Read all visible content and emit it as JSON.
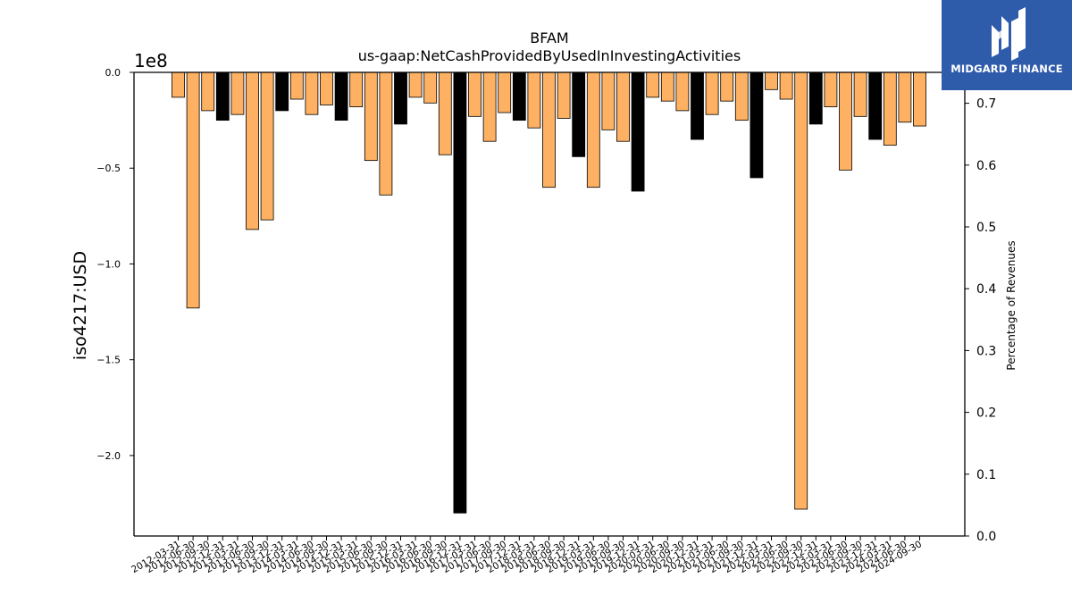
{
  "brand": {
    "name": "MIDGARD FINANCE",
    "icon": "midgard-m-logo",
    "color": "#2f5bab"
  },
  "chart_data": {
    "type": "bar",
    "title": "BFAM",
    "subtitle": "us-gaap:NetCashProvidedByUsedInInvestingActivities",
    "ylabel": "iso4217:USD",
    "y_offset_label": "1e8",
    "y2label": "Percentage of Revenues",
    "ylim": [
      -2.42,
      0
    ],
    "y2lim": [
      0,
      0.75
    ],
    "yticks": [
      0.0,
      -0.5,
      -1.0,
      -1.5,
      -2.0
    ],
    "ytick_labels": [
      "0.0",
      "−0.5",
      "−1.0",
      "−1.5",
      "−2.0"
    ],
    "y2ticks": [
      0.0,
      0.1,
      0.2,
      0.3,
      0.4,
      0.5,
      0.6,
      0.7
    ],
    "y2tick_labels": [
      "0.0",
      "0.1",
      "0.2",
      "0.3",
      "0.4",
      "0.5",
      "0.6",
      "0.7"
    ],
    "grid": false,
    "colors": {
      "quarter": "#feb162",
      "annual": "#000000",
      "edge": "#000000"
    },
    "categories": [
      "2012-03-31",
      "2012-06-30",
      "2012-09-30",
      "2012-12-31",
      "2013-03-31",
      "2013-06-30",
      "2013-09-30",
      "2013-12-31",
      "2014-03-31",
      "2014-06-30",
      "2014-09-30",
      "2014-12-31",
      "2015-03-31",
      "2015-06-30",
      "2015-09-30",
      "2015-12-31",
      "2016-03-31",
      "2016-06-30",
      "2016-09-30",
      "2016-12-31",
      "2017-03-31",
      "2017-06-30",
      "2017-09-30",
      "2017-12-31",
      "2018-03-31",
      "2018-06-30",
      "2018-09-30",
      "2018-12-31",
      "2019-03-31",
      "2019-06-30",
      "2019-09-30",
      "2019-12-31",
      "2020-03-31",
      "2020-06-30",
      "2020-09-30",
      "2020-12-31",
      "2021-03-31",
      "2021-06-30",
      "2021-09-30",
      "2021-12-31",
      "2022-03-31",
      "2022-06-30",
      "2022-09-30",
      "2022-12-31",
      "2023-03-31",
      "2023-06-30",
      "2023-09-30",
      "2023-12-31",
      "2024-03-31",
      "2024-06-30",
      "2024-09-30"
    ],
    "values": [
      -0.13,
      -1.23,
      -0.2,
      -0.25,
      -0.22,
      -0.82,
      -0.77,
      -0.2,
      -0.14,
      -0.22,
      -0.17,
      -0.25,
      -0.18,
      -0.46,
      -0.64,
      -0.27,
      -0.13,
      -0.16,
      -0.43,
      -2.3,
      -0.23,
      -0.36,
      -0.21,
      -0.25,
      -0.29,
      -0.6,
      -0.24,
      -0.44,
      -0.6,
      -0.3,
      -0.36,
      -0.62,
      -0.13,
      -0.15,
      -0.2,
      -0.35,
      -0.22,
      -0.15,
      -0.25,
      -0.55,
      -0.09,
      -0.14,
      -2.28,
      -0.27,
      -0.18,
      -0.51,
      -0.23,
      -0.35,
      -0.38,
      -0.26,
      -0.28
    ],
    "annual": [
      false,
      false,
      false,
      true,
      false,
      false,
      false,
      true,
      false,
      false,
      false,
      true,
      false,
      false,
      false,
      true,
      false,
      false,
      false,
      true,
      false,
      false,
      false,
      true,
      false,
      false,
      false,
      true,
      false,
      false,
      false,
      true,
      false,
      false,
      false,
      true,
      false,
      false,
      false,
      true,
      false,
      false,
      false,
      true,
      false,
      false,
      false,
      true,
      false,
      false,
      false
    ]
  }
}
